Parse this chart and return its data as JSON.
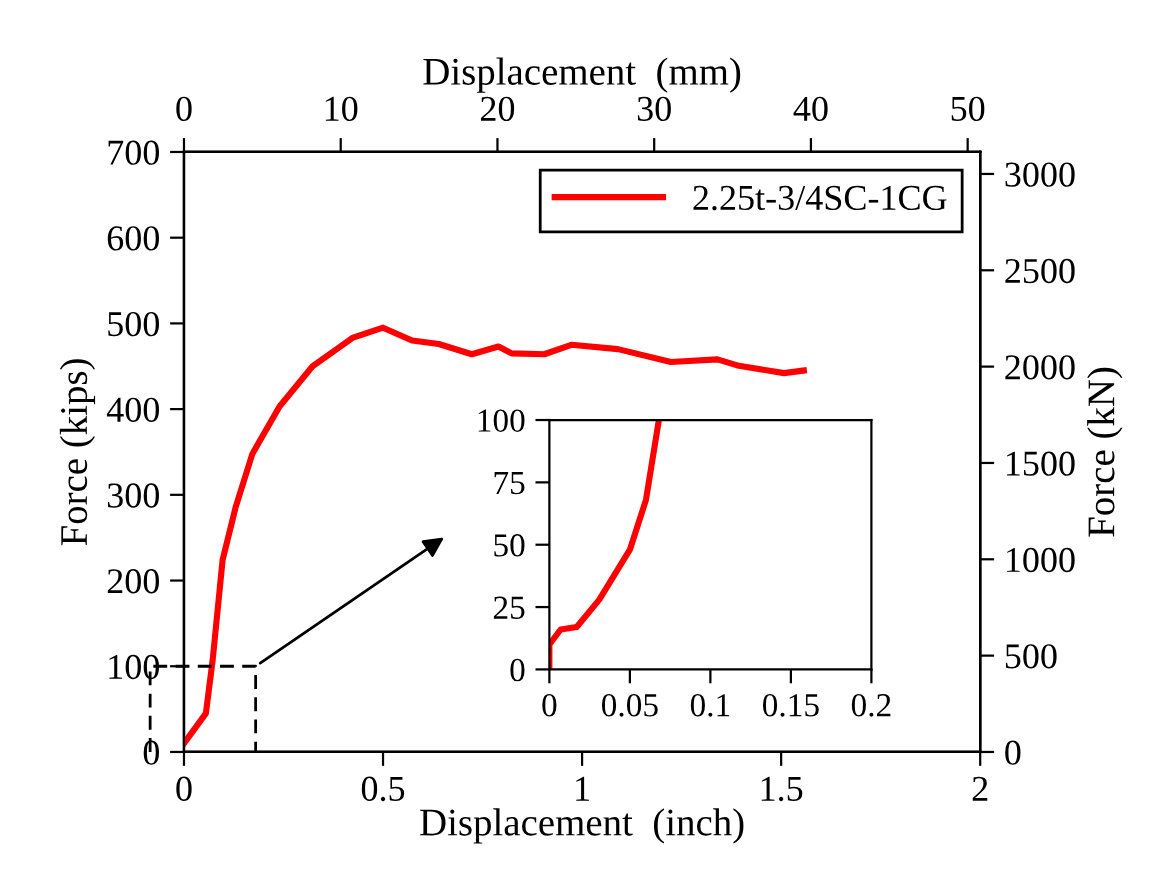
{
  "chart_data": [
    {
      "type": "line",
      "xlabel": "Displacement  (inch)",
      "ylabel": "Force (kips)",
      "x2label": "Displacement  (mm)",
      "y2label": "Force (kN)",
      "xlim": [
        0,
        2
      ],
      "xticks": [
        0,
        0.5,
        1,
        1.5,
        2
      ],
      "ylim": [
        0,
        700
      ],
      "yticks": [
        0,
        100,
        200,
        300,
        400,
        500,
        600,
        700
      ],
      "x2lim": [
        0,
        50.8
      ],
      "x2ticks": [
        0,
        10,
        20,
        30,
        40,
        50
      ],
      "y2lim": [
        0,
        3114
      ],
      "y2ticks": [
        0,
        500,
        1000,
        1500,
        2000,
        2500,
        3000
      ],
      "grid": false,
      "legend": "top right",
      "line_style": "solid",
      "marker": "none",
      "series": [
        {
          "name": "2.25t-3/4SC-1CG",
          "color": "#ff0000",
          "x": [
            0,
            0.055,
            0.072,
            0.097,
            0.13,
            0.172,
            0.24,
            0.323,
            0.423,
            0.5,
            0.573,
            0.64,
            0.723,
            0.79,
            0.823,
            0.905,
            0.973,
            1.09,
            1.223,
            1.34,
            1.39,
            1.507,
            1.557
          ],
          "values": [
            10,
            45,
            107,
            224,
            286,
            348,
            403,
            450,
            483,
            495,
            480,
            476,
            464,
            473,
            465,
            464,
            475,
            470,
            455,
            458,
            451,
            442,
            445
          ]
        }
      ]
    },
    {
      "type": "line",
      "xlim": [
        0,
        0.2
      ],
      "xticks": [
        0,
        0.05,
        0.1,
        0.15,
        0.2
      ],
      "ylim": [
        0,
        100
      ],
      "yticks": [
        0,
        25,
        50,
        75,
        100
      ],
      "grid": false,
      "line_style": "solid",
      "marker": "none",
      "series": [
        {
          "color": "#ff0000",
          "x": [
            0,
            0,
            0.007,
            0.017,
            0.031,
            0.05,
            0.06,
            0.068
          ],
          "values": [
            0,
            10,
            16,
            17,
            28,
            48,
            68,
            100
          ]
        }
      ]
    }
  ]
}
